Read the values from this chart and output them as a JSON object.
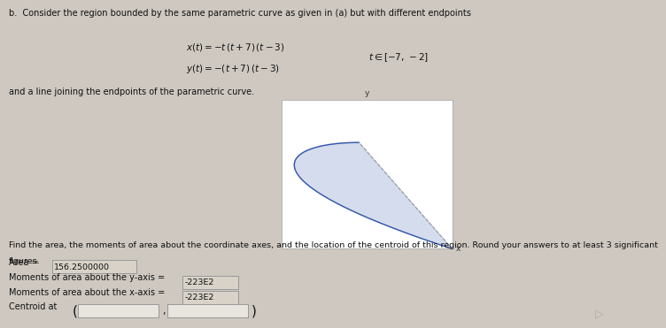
{
  "title_b": "b.  Consider the region bounded by the same parametric curve as given in (a) but with different endpoints",
  "find_text": "Find the area, the moments of area about the coordinate axes, and the location of the centroid of this region. Round your answers to at least 3 significant",
  "figures_text": "figures.",
  "area_label": "Area =",
  "area_value": "156.2500000",
  "my_label": "Moments of area about the y-axis =",
  "my_value": "-223E2",
  "mx_label": "Moments of area about the x-axis =",
  "mx_value": "-223E2",
  "centroid_label": "Centroid at",
  "bg_color": "#cec8c0",
  "box_color": "#e8e4de",
  "input_box_color": "#d8d2c8",
  "text_color": "#111111",
  "plot_bg": "#ffffff",
  "curve_color": "#3355aa",
  "fill_color": "#aabbdd",
  "dashed_color": "#999999",
  "plot_border": "#aaaaaa"
}
